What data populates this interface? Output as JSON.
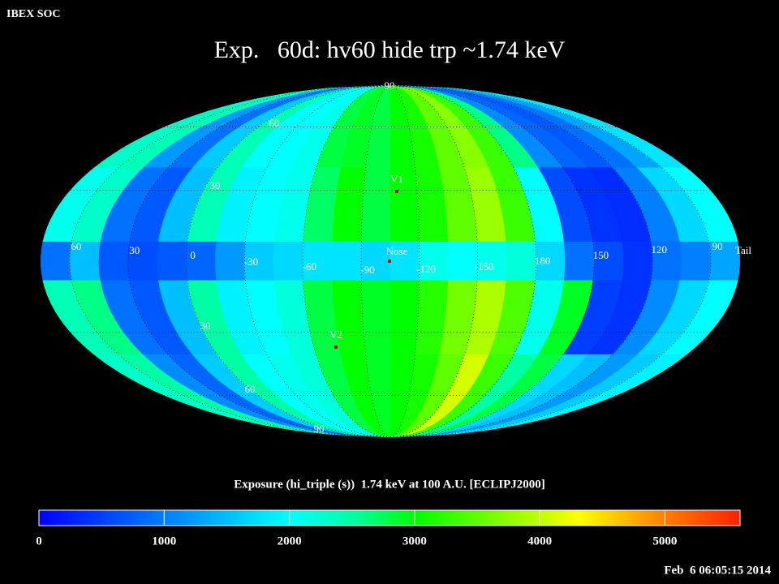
{
  "header": {
    "source": "IBEX SOC",
    "title": "Exp.   60d: hv60 hide trp ~1.74 keV",
    "timestamp": "Feb  6 06:05:15 2014"
  },
  "chart_data": {
    "type": "mollweide_heatmap",
    "lon_ticks": [
      60,
      30,
      0,
      -30,
      -60,
      -90,
      -120,
      -150,
      180,
      150,
      120,
      90
    ],
    "lat_ticks": [
      {
        "value": 90,
        "label": "90"
      },
      60,
      30,
      {
        "value": -30,
        "label": "30"
      },
      {
        "value": -60,
        "label": "60"
      },
      {
        "value": -90,
        "label": "90"
      }
    ],
    "markers": [
      {
        "label": "V1"
      },
      {
        "label": "Nose"
      },
      {
        "label": "V2"
      },
      {
        "label": "Tail"
      }
    ],
    "values": [
      [
        2300,
        2400,
        1200,
        900,
        1600,
        2400,
        2000,
        2000,
        2100,
        2800,
        2900,
        2800,
        3000,
        3100,
        3500,
        3700,
        3300,
        2600,
        1100,
        800,
        700,
        900,
        1300,
        1800
      ],
      [
        2100,
        2300,
        900,
        700,
        1500,
        2400,
        1900,
        2000,
        2100,
        2700,
        3000,
        2800,
        3000,
        3100,
        3500,
        3800,
        3300,
        2000,
        600,
        400,
        350,
        1000,
        1700,
        2000
      ],
      [
        900,
        1500,
        700,
        600,
        700,
        800,
        1200,
        1600,
        1700,
        1800,
        1800,
        1700,
        1800,
        2100,
        2000,
        2100,
        2200,
        1700,
        900,
        600,
        400,
        900,
        1000,
        1300
      ],
      [
        2400,
        2600,
        900,
        700,
        1500,
        2500,
        1900,
        2000,
        2200,
        2800,
        3000,
        2900,
        3000,
        3200,
        3600,
        3900,
        3400,
        2100,
        2900,
        500,
        400,
        1100,
        1700,
        2000
      ],
      [
        2300,
        2500,
        1100,
        800,
        1600,
        2500,
        2000,
        2100,
        2200,
        2800,
        3000,
        2900,
        3000,
        3100,
        3500,
        4100,
        3300,
        2500,
        2800,
        1700,
        1500,
        1200,
        1600,
        1900
      ]
    ],
    "colorbar": {
      "title": "Exposure (hi_triple (s))  1.74 keV at 100 A.U. [ECLIPJ2000]",
      "lim": [
        0,
        5600
      ],
      "ticks": [
        0,
        1000,
        2000,
        3000,
        4000,
        5000
      ]
    }
  }
}
